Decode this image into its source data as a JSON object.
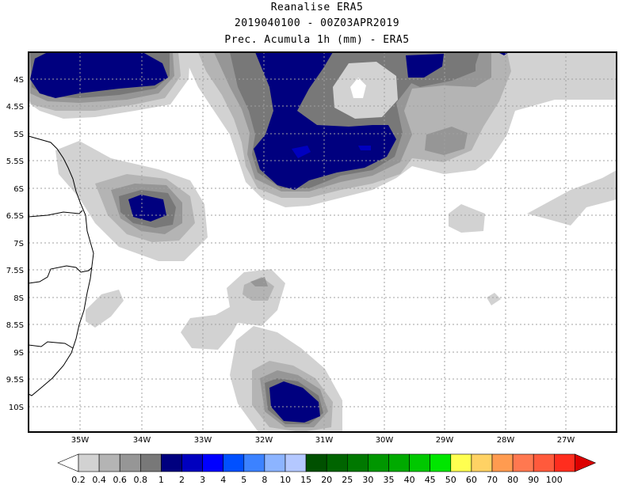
{
  "title": {
    "line1": "Reanalise ERA5",
    "line2": "2019040100 - 00Z03APR2019",
    "line3": "Prec. Acumula 1h (mm) - ERA5"
  },
  "lon_labels": [
    "35W",
    "34W",
    "33W",
    "32W",
    "31W",
    "30W",
    "29W",
    "28W",
    "27W"
  ],
  "lat_labels": [
    "4S",
    "4.5S",
    "5S",
    "5.5S",
    "6S",
    "6.5S",
    "7S",
    "7.5S",
    "8S",
    "8.5S",
    "9S",
    "9.5S",
    "10S"
  ],
  "colorbar": {
    "labels": [
      "0.2",
      "0.4",
      "0.6",
      "0.8",
      "1",
      "2",
      "3",
      "4",
      "5",
      "8",
      "10",
      "15",
      "20",
      "25",
      "30",
      "35",
      "40",
      "45",
      "50",
      "60",
      "70",
      "80",
      "90",
      "100"
    ],
    "colors": [
      "#ffffff",
      "#d2d2d2",
      "#b4b4b4",
      "#969696",
      "#787878",
      "#00007f",
      "#0000bf",
      "#0000ff",
      "#0050ff",
      "#3c82ff",
      "#8cb4ff",
      "#b4c8ff",
      "#005000",
      "#006400",
      "#007800",
      "#009600",
      "#00aa00",
      "#00c800",
      "#00e600",
      "#ffff50",
      "#ffd264",
      "#ff9b50",
      "#ff7850",
      "#ff5a3c",
      "#ff2d1e",
      "#dc0000"
    ]
  },
  "precipitation_shading": "gray/blue contour fill",
  "colors": {
    "level_0_2": "#d2d2d2",
    "level_0_4": "#b4b4b4",
    "level_0_6": "#969696",
    "level_0_8": "#787878",
    "level_1": "#00007f",
    "level_2": "#0000bf",
    "coastline": "#000000",
    "grid": "#999999"
  }
}
